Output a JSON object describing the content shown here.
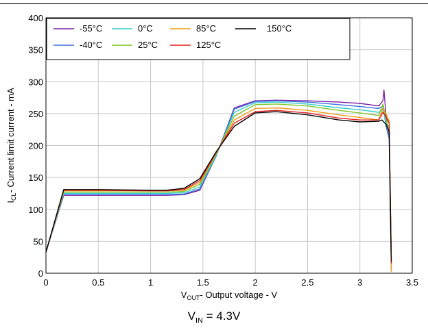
{
  "chart_data": {
    "type": "line",
    "xlabel_main": "V",
    "xlabel_sub": "OUT",
    "xlabel_rest": "- Output voltage - V",
    "ylabel_main": "I",
    "ylabel_sub": "CL",
    "ylabel_rest": "- Current limit current - mA",
    "xlim": [
      0,
      3.5
    ],
    "ylim": [
      0,
      400
    ],
    "xticks": [
      0,
      0.5,
      1,
      1.5,
      2,
      2.5,
      3,
      3.5
    ],
    "xtick_labels": [
      "0",
      "0.5",
      "1",
      "1.5",
      "2",
      "2.5",
      "3",
      "3.5"
    ],
    "yticks": [
      0,
      50,
      100,
      150,
      200,
      250,
      300,
      350,
      400
    ],
    "ytick_labels": [
      "0",
      "50",
      "100",
      "150",
      "200",
      "250",
      "300",
      "350",
      "400"
    ],
    "grid": true,
    "legend_position": "top-left",
    "series": [
      {
        "name": "-55°C",
        "color": "#7b1fa2",
        "points": [
          [
            0,
            33
          ],
          [
            0.17,
            122
          ],
          [
            0.5,
            122
          ],
          [
            1,
            122
          ],
          [
            1.15,
            122
          ],
          [
            1.32,
            123
          ],
          [
            1.47,
            130
          ],
          [
            1.63,
            185
          ],
          [
            1.8,
            259
          ],
          [
            2,
            270
          ],
          [
            2.2,
            271
          ],
          [
            2.5,
            270
          ],
          [
            2.8,
            268
          ],
          [
            3.0,
            266
          ],
          [
            3.18,
            262
          ],
          [
            3.22,
            270
          ],
          [
            3.23,
            287
          ],
          [
            3.25,
            245
          ],
          [
            3.28,
            215
          ],
          [
            3.3,
            5
          ]
        ]
      },
      {
        "name": "-40°C",
        "color": "#3a6fe0",
        "points": [
          [
            0,
            33
          ],
          [
            0.17,
            123
          ],
          [
            0.5,
            123
          ],
          [
            1,
            123
          ],
          [
            1.15,
            123
          ],
          [
            1.32,
            124
          ],
          [
            1.47,
            132
          ],
          [
            1.63,
            185
          ],
          [
            1.8,
            257
          ],
          [
            2,
            269
          ],
          [
            2.2,
            270
          ],
          [
            2.5,
            268
          ],
          [
            2.8,
            264
          ],
          [
            3.0,
            261
          ],
          [
            3.18,
            258
          ],
          [
            3.22,
            262
          ],
          [
            3.25,
            230
          ],
          [
            3.28,
            210
          ],
          [
            3.3,
            8
          ]
        ]
      },
      {
        "name": "0°C",
        "color": "#33cccc",
        "points": [
          [
            0,
            33
          ],
          [
            0.17,
            125
          ],
          [
            0.5,
            125
          ],
          [
            1,
            125
          ],
          [
            1.15,
            125
          ],
          [
            1.32,
            126
          ],
          [
            1.47,
            135
          ],
          [
            1.63,
            186
          ],
          [
            1.8,
            252
          ],
          [
            2,
            267
          ],
          [
            2.2,
            268
          ],
          [
            2.5,
            265
          ],
          [
            2.8,
            259
          ],
          [
            3.0,
            256
          ],
          [
            3.18,
            252
          ],
          [
            3.22,
            258
          ],
          [
            3.25,
            235
          ],
          [
            3.28,
            220
          ],
          [
            3.3,
            10
          ]
        ]
      },
      {
        "name": "25°C",
        "color": "#7cc625",
        "points": [
          [
            0,
            33
          ],
          [
            0.17,
            127
          ],
          [
            0.5,
            127
          ],
          [
            1,
            127
          ],
          [
            1.15,
            127
          ],
          [
            1.32,
            128
          ],
          [
            1.47,
            139
          ],
          [
            1.63,
            188
          ],
          [
            1.8,
            246
          ],
          [
            2,
            264
          ],
          [
            2.2,
            265
          ],
          [
            2.5,
            262
          ],
          [
            2.8,
            255
          ],
          [
            3.0,
            251
          ],
          [
            3.18,
            247
          ],
          [
            3.22,
            265
          ],
          [
            3.25,
            240
          ],
          [
            3.28,
            225
          ],
          [
            3.3,
            12
          ]
        ]
      },
      {
        "name": "85°C",
        "color": "#f39c12",
        "points": [
          [
            0,
            33
          ],
          [
            0.17,
            129
          ],
          [
            0.5,
            129
          ],
          [
            1,
            129
          ],
          [
            1.15,
            129
          ],
          [
            1.32,
            130
          ],
          [
            1.47,
            142
          ],
          [
            1.63,
            189
          ],
          [
            1.8,
            240
          ],
          [
            2,
            258
          ],
          [
            2.2,
            259
          ],
          [
            2.5,
            255
          ],
          [
            2.8,
            248
          ],
          [
            3.0,
            244
          ],
          [
            3.18,
            240
          ],
          [
            3.22,
            258
          ],
          [
            3.25,
            250
          ],
          [
            3.28,
            238
          ],
          [
            3.3,
            2
          ]
        ]
      },
      {
        "name": "125°C",
        "color": "#e21b1b",
        "points": [
          [
            0,
            33
          ],
          [
            0.17,
            130
          ],
          [
            0.5,
            130
          ],
          [
            1,
            129
          ],
          [
            1.15,
            129
          ],
          [
            1.32,
            131
          ],
          [
            1.47,
            145
          ],
          [
            1.63,
            190
          ],
          [
            1.8,
            235
          ],
          [
            2,
            253
          ],
          [
            2.2,
            255
          ],
          [
            2.5,
            251
          ],
          [
            2.8,
            243
          ],
          [
            3.0,
            240
          ],
          [
            3.18,
            240
          ],
          [
            3.22,
            252
          ],
          [
            3.25,
            245
          ],
          [
            3.28,
            235
          ],
          [
            3.3,
            15
          ]
        ]
      },
      {
        "name": "150°C",
        "color": "#000000",
        "points": [
          [
            0,
            33
          ],
          [
            0.17,
            131
          ],
          [
            0.5,
            131
          ],
          [
            1,
            130
          ],
          [
            1.15,
            130
          ],
          [
            1.32,
            133
          ],
          [
            1.47,
            148
          ],
          [
            1.63,
            191
          ],
          [
            1.8,
            230
          ],
          [
            2,
            251
          ],
          [
            2.2,
            253
          ],
          [
            2.5,
            248
          ],
          [
            2.8,
            240
          ],
          [
            3.0,
            237
          ],
          [
            3.18,
            238
          ],
          [
            3.21,
            240
          ],
          [
            3.25,
            233
          ],
          [
            3.28,
            222
          ],
          [
            3.3,
            18
          ]
        ]
      }
    ]
  },
  "caption": {
    "main": "V",
    "sub": "IN",
    "rest": " = 4.3V"
  }
}
